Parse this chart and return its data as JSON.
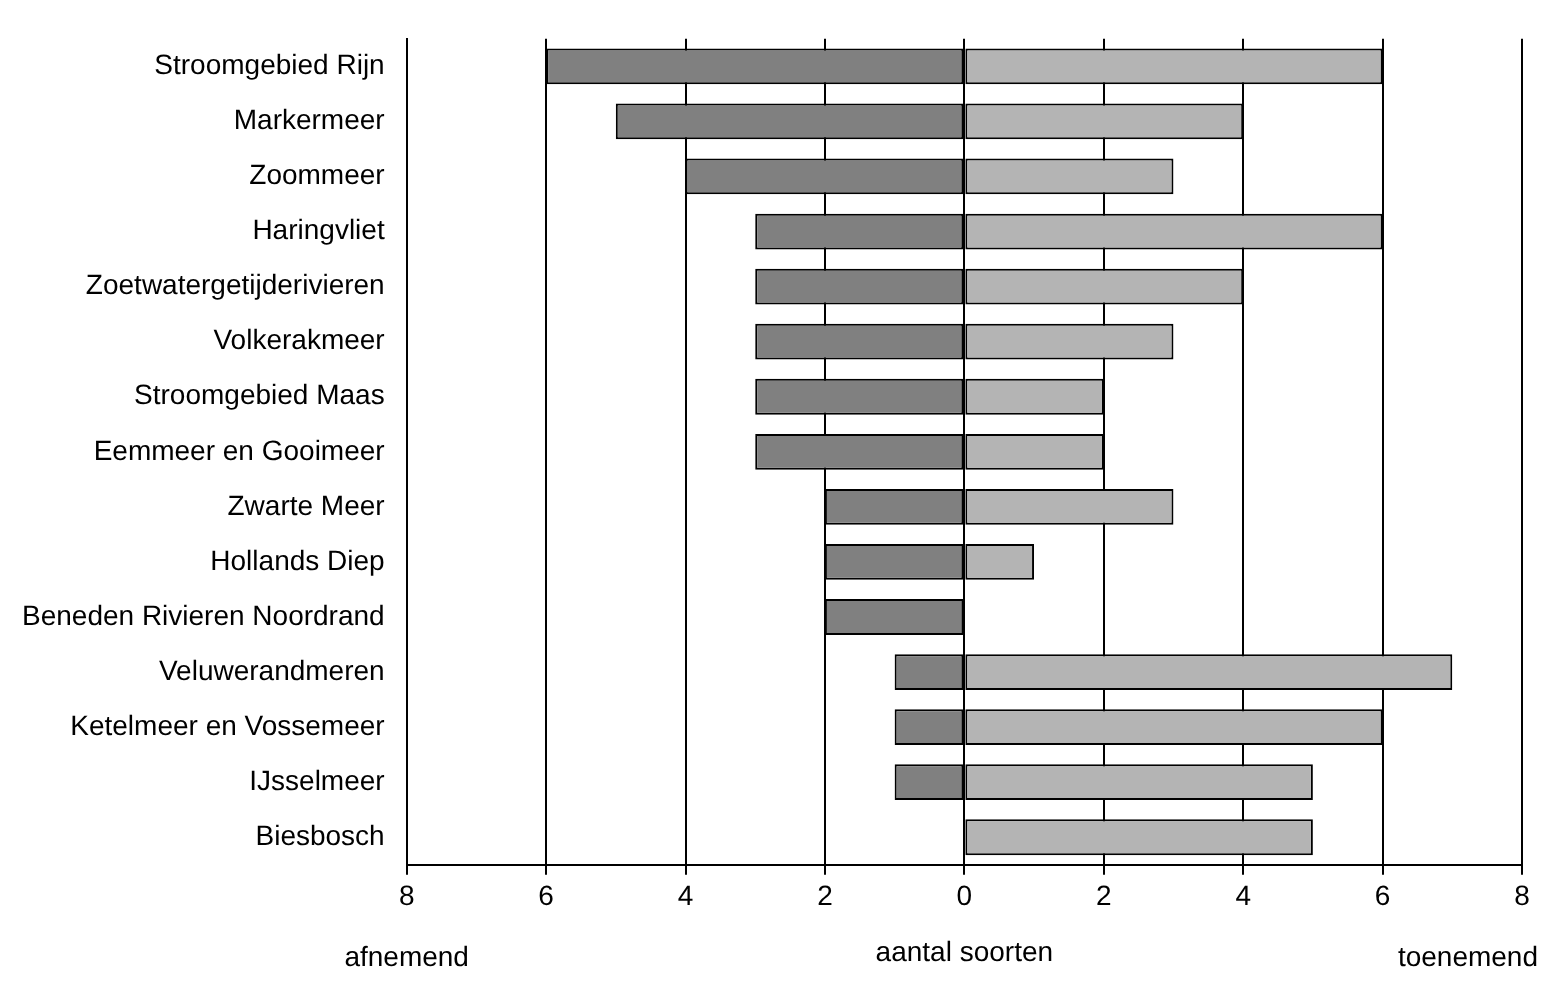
{
  "chart_data": {
    "type": "bar",
    "orientation": "horizontal",
    "stacked": true,
    "categories": [
      "Stroomgebied Rijn",
      "Markermeer",
      "Zoommeer",
      "Haringvliet",
      "Zoetwatergetijderivieren",
      "Volkerakmeer",
      "Stroomgebied Maas",
      "Eemmeer en Gooimeer",
      "Zwarte Meer",
      "Hollands Diep",
      "Beneden Rivieren Noordrand",
      "Veluwerandmeren",
      "Ketelmeer en Vossemeer",
      "IJsselmeer",
      "Biesbosch"
    ],
    "series": [
      {
        "color": "#808080",
        "values": [
          -6,
          -5,
          -4,
          -3,
          -3,
          -3,
          -3,
          -3,
          -2,
          -2,
          -2,
          -1,
          -1,
          -1,
          0
        ]
      },
      {
        "color": "#b4b4b4",
        "values": [
          6,
          4,
          3,
          6,
          4,
          3,
          2,
          2,
          3,
          1,
          0,
          7,
          6,
          5,
          5
        ]
      }
    ],
    "xlim": [
      -8,
      8
    ],
    "xticks": [
      {
        "value": -8,
        "label": "8"
      },
      {
        "value": -6,
        "label": "6"
      },
      {
        "value": -4,
        "label": "4"
      },
      {
        "value": -2,
        "label": "2"
      },
      0,
      2,
      4,
      6,
      8
    ],
    "xlabel": "aantal soorten",
    "annotations": [
      "afnemend",
      "toenemend"
    ],
    "grid": "x"
  }
}
